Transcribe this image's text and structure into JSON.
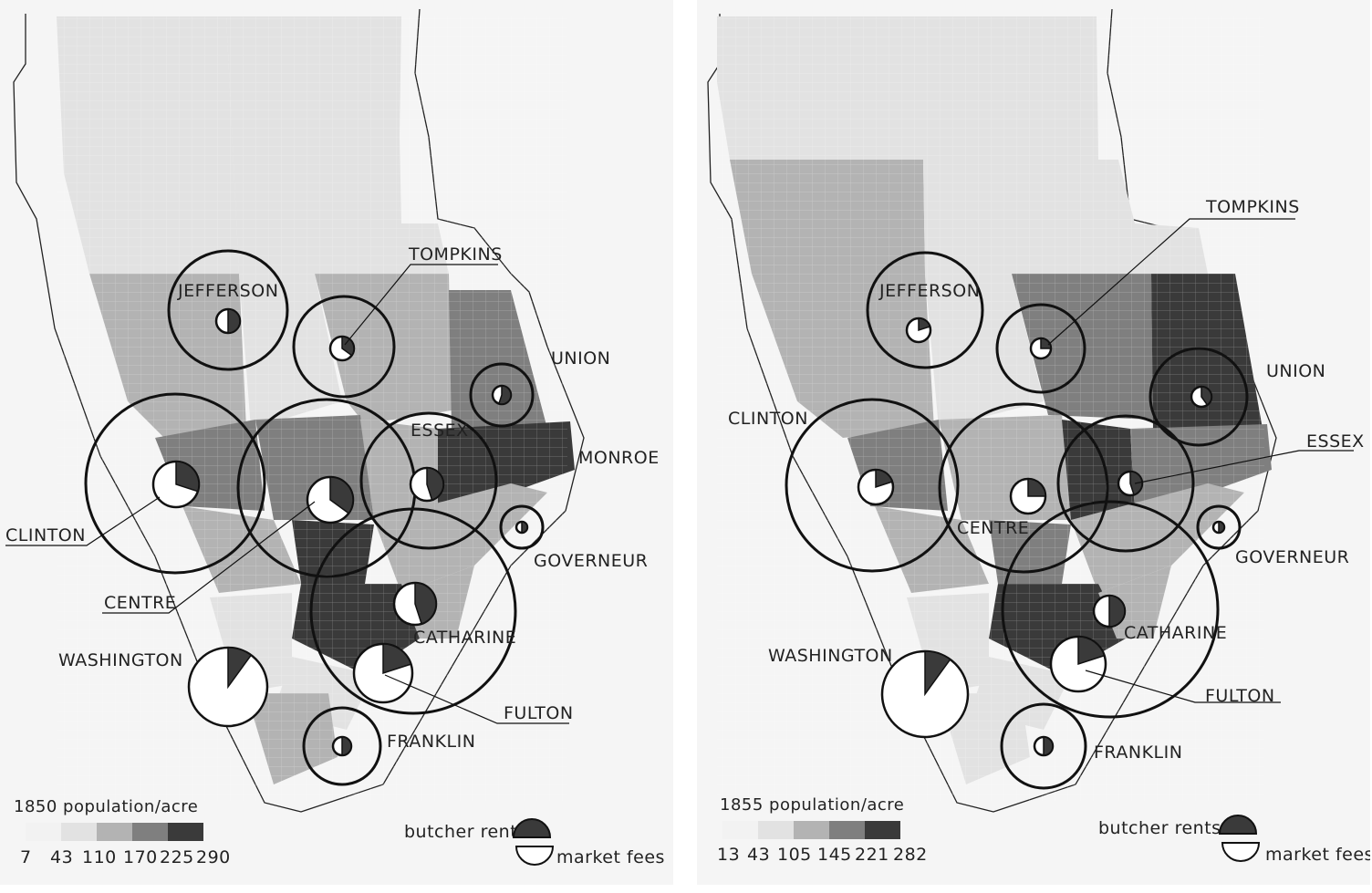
{
  "palette": {
    "background": "#f5f5f5",
    "class1": "#f2f2f2",
    "class2": "#e2e2e2",
    "class3": "#b3b3b3",
    "class4": "#7f7f7f",
    "class5": "#3a3a3a",
    "pie_fees": "#ffffff",
    "pie_rents": "#3a3a3a",
    "stroke": "#111111"
  },
  "maps": [
    {
      "id": "1850",
      "legend": {
        "title": "1850 population/acre",
        "breaks": [
          "7",
          "43",
          "110",
          "170",
          "225",
          "290"
        ],
        "pie_top_label": "butcher rents",
        "pie_bottom_label": "market fees"
      },
      "markets": [
        {
          "name": "JEFFERSON",
          "rent_share": 0.5
        },
        {
          "name": "TOMPKINS",
          "rent_share": 0.35
        },
        {
          "name": "UNION",
          "rent_share": 0.55
        },
        {
          "name": "ESSEX",
          "rent_share": 0.45
        },
        {
          "name": "MONROE",
          "rent_share": 0.0
        },
        {
          "name": "CLINTON",
          "rent_share": 0.3
        },
        {
          "name": "CENTRE",
          "rent_share": 0.35
        },
        {
          "name": "GOVERNEUR",
          "rent_share": 0.5
        },
        {
          "name": "CATHARINE",
          "rent_share": 0.45
        },
        {
          "name": "WASHINGTON",
          "rent_share": 0.1
        },
        {
          "name": "FULTON",
          "rent_share": 0.2
        },
        {
          "name": "FRANKLIN",
          "rent_share": 0.5
        }
      ]
    },
    {
      "id": "1855",
      "legend": {
        "title": "1855 population/acre",
        "breaks": [
          "13",
          "43",
          "105",
          "145",
          "221",
          "282"
        ],
        "pie_top_label": "butcher rents",
        "pie_bottom_label": "market fees"
      },
      "markets": [
        {
          "name": "JEFFERSON",
          "rent_share": 0.2
        },
        {
          "name": "TOMPKINS",
          "rent_share": 0.25
        },
        {
          "name": "UNION",
          "rent_share": 0.4
        },
        {
          "name": "ESSEX",
          "rent_share": 0.45
        },
        {
          "name": "CLINTON",
          "rent_share": 0.2
        },
        {
          "name": "CENTRE",
          "rent_share": 0.25
        },
        {
          "name": "GOVERNEUR",
          "rent_share": 0.5
        },
        {
          "name": "CATHARINE",
          "rent_share": 0.5
        },
        {
          "name": "WASHINGTON",
          "rent_share": 0.1
        },
        {
          "name": "FULTON",
          "rent_share": 0.2
        },
        {
          "name": "FRANKLIN",
          "rent_share": 0.5
        }
      ]
    }
  ]
}
